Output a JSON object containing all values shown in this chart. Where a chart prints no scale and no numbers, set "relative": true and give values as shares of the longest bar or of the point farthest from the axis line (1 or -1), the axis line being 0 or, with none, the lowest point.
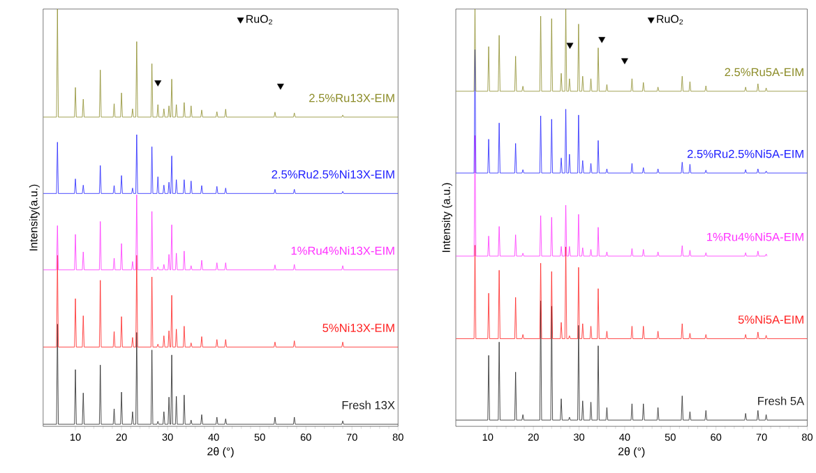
{
  "chart_data": [
    {
      "type": "line",
      "relative": true,
      "xlabel": "2θ (°)",
      "ylabel": "Intensity(a.u.)",
      "xlim": [
        3,
        80
      ],
      "xticks": [
        10,
        20,
        30,
        40,
        50,
        60,
        70,
        80
      ],
      "legend": "top",
      "x": [
        3.1,
        5.9,
        6.1,
        6.3,
        9.8,
        10,
        10.2,
        11.5,
        11.7,
        11.9,
        15.2,
        15.4,
        15.6,
        18.2,
        18.4,
        18.6,
        19.8,
        20,
        20.2,
        22.2,
        22.4,
        22.6,
        23.1,
        23.3,
        23.5,
        26.4,
        26.6,
        26.8,
        27.7,
        27.9,
        28.1,
        29,
        29.2,
        29.4,
        30.1,
        30.3,
        30.5,
        30.7,
        30.9,
        31.1,
        31.7,
        31.9,
        32.1,
        33.4,
        33.6,
        33.8,
        34.9,
        35.1,
        35.3,
        37.2,
        37.4,
        37.6,
        40.5,
        40.7,
        40.9,
        42.4,
        42.6,
        42.8,
        53.1,
        53.3,
        53.5,
        57.3,
        57.5,
        57.7,
        67.8,
        68,
        68.2,
        80
      ],
      "series": [
        {
          "name": "Fresh 13X",
          "color": "#222222",
          "values": [
            0.005,
            0.005,
            0.245,
            0.005,
            0.005,
            0.136,
            0.005,
            0.005,
            0.08,
            0.005,
            0.005,
            0.147,
            0.005,
            0.005,
            0.042,
            0.005,
            0.005,
            0.082,
            0.005,
            0.005,
            0.035,
            0.005,
            0.005,
            0.225,
            0.005,
            0.005,
            0.183,
            0.005,
            0.005,
            0.012,
            0.005,
            0.005,
            0.035,
            0.005,
            0.005,
            0.07,
            0.005,
            0.005,
            0.171,
            0.005,
            0.005,
            0.072,
            0.005,
            0.005,
            0.075,
            0.005,
            0.005,
            0.015,
            0.005,
            0.005,
            0.028,
            0.005,
            0.005,
            0.022,
            0.005,
            0.005,
            0.018,
            0.005,
            0.005,
            0.022,
            0.005,
            0.005,
            0.022,
            0.005,
            0.005,
            0.013,
            0.005,
            0.005
          ]
        },
        {
          "name": "5%Ni13X-EIM",
          "color": "#ff2020",
          "values": [
            0.19,
            0.19,
            0.41,
            0.19,
            0.19,
            0.306,
            0.19,
            0.19,
            0.265,
            0.19,
            0.19,
            0.35,
            0.19,
            0.19,
            0.227,
            0.19,
            0.19,
            0.263,
            0.19,
            0.19,
            0.213,
            0.19,
            0.19,
            0.41,
            0.19,
            0.19,
            0.358,
            0.19,
            0.19,
            0.197,
            0.19,
            0.19,
            0.217,
            0.19,
            0.19,
            0.229,
            0.19,
            0.19,
            0.314,
            0.19,
            0.19,
            0.233,
            0.19,
            0.19,
            0.24,
            0.19,
            0.19,
            0.2,
            0.19,
            0.19,
            0.215,
            0.19,
            0.19,
            0.208,
            0.19,
            0.19,
            0.208,
            0.19,
            0.19,
            0.202,
            0.19,
            0.19,
            0.205,
            0.19,
            0.19,
            0.202,
            0.19,
            0.19
          ]
        },
        {
          "name": "1%Ru4%Ni13X-EIM",
          "color": "#ff30ff",
          "values": [
            0.375,
            0.375,
            0.481,
            0.375,
            0.375,
            0.46,
            0.375,
            0.375,
            0.418,
            0.375,
            0.375,
            0.491,
            0.375,
            0.375,
            0.403,
            0.375,
            0.375,
            0.438,
            0.375,
            0.375,
            0.395,
            0.375,
            0.375,
            0.555,
            0.375,
            0.375,
            0.515,
            0.375,
            0.375,
            0.382,
            0.375,
            0.375,
            0.388,
            0.375,
            0.375,
            0.412,
            0.375,
            0.375,
            0.483,
            0.375,
            0.375,
            0.415,
            0.375,
            0.375,
            0.42,
            0.375,
            0.375,
            0.385,
            0.375,
            0.375,
            0.398,
            0.375,
            0.375,
            0.392,
            0.375,
            0.375,
            0.392,
            0.375,
            0.375,
            0.387,
            0.375,
            0.375,
            0.388,
            0.375,
            0.375,
            0.385,
            0.375,
            0.375
          ]
        },
        {
          "name": "2.5%Ru2.5%Ni13X-EIM",
          "color": "#2020ff",
          "values": [
            0.558,
            0.558,
            0.681,
            0.558,
            0.558,
            0.593,
            0.558,
            0.558,
            0.578,
            0.558,
            0.558,
            0.625,
            0.558,
            0.558,
            0.577,
            0.558,
            0.558,
            0.601,
            0.558,
            0.558,
            0.571,
            0.558,
            0.558,
            0.699,
            0.558,
            0.558,
            0.67,
            0.558,
            0.558,
            0.598,
            0.558,
            0.558,
            0.578,
            0.558,
            0.558,
            0.585,
            0.558,
            0.558,
            0.648,
            0.558,
            0.558,
            0.591,
            0.558,
            0.558,
            0.591,
            0.558,
            0.558,
            0.588,
            0.558,
            0.558,
            0.577,
            0.558,
            0.558,
            0.575,
            0.558,
            0.558,
            0.571,
            0.558,
            0.558,
            0.568,
            0.558,
            0.558,
            0.568,
            0.558,
            0.558,
            0.563,
            0.558,
            0.558
          ]
        },
        {
          "name": "2.5%Ru13X-EIM",
          "color": "#8c8c28",
          "values": [
            0.741,
            0.741,
            1.0,
            0.741,
            0.741,
            0.812,
            0.741,
            0.741,
            0.784,
            0.741,
            0.741,
            0.854,
            0.741,
            0.741,
            0.773,
            0.741,
            0.741,
            0.799,
            0.741,
            0.741,
            0.761,
            0.741,
            0.741,
            0.922,
            0.741,
            0.741,
            0.869,
            0.741,
            0.741,
            0.771,
            0.741,
            0.741,
            0.761,
            0.741,
            0.741,
            0.768,
            0.741,
            0.741,
            0.832,
            0.741,
            0.741,
            0.771,
            0.741,
            0.741,
            0.776,
            0.741,
            0.741,
            0.768,
            0.741,
            0.741,
            0.758,
            0.741,
            0.741,
            0.754,
            0.741,
            0.741,
            0.76,
            0.741,
            0.741,
            0.753,
            0.741,
            0.741,
            0.751,
            0.741,
            0.741,
            0.746,
            0.741,
            0.741
          ]
        },
        {
          "name": "RuO$_{2}$",
          "type": "scatter",
          "marker": "triangle",
          "color": "#000000",
          "x": [
            27.9,
            54.5
          ],
          "values": [
            0.824,
            0.816
          ]
        }
      ]
    },
    {
      "type": "line",
      "relative": true,
      "xlabel": "2θ (°)",
      "ylabel": "Intensity (a.u.)",
      "xlim": [
        3,
        80
      ],
      "xticks": [
        10,
        20,
        30,
        40,
        50,
        60,
        70,
        80
      ],
      "legend": "top",
      "x": [
        3.1,
        7.0,
        7.2,
        7.4,
        10.0,
        10.2,
        10.4,
        12.3,
        12.5,
        12.7,
        15.9,
        16.1,
        16.3,
        17.5,
        17.7,
        17.9,
        21.4,
        21.6,
        21.8,
        23.8,
        24.0,
        24.2,
        25.9,
        26.1,
        26.3,
        26.9,
        27.1,
        27.3,
        27.7,
        27.9,
        28.1,
        29.7,
        29.9,
        30.1,
        30.6,
        30.8,
        31.0,
        32.4,
        32.6,
        32.8,
        34.0,
        34.2,
        34.4,
        35.9,
        36.1,
        36.3,
        41.4,
        41.6,
        41.8,
        43.9,
        44.1,
        44.3,
        47.1,
        47.3,
        47.5,
        52.4,
        52.6,
        52.8,
        54.1,
        54.3,
        54.5,
        57.6,
        57.8,
        58.0,
        66.3,
        66.5,
        66.7,
        69.0,
        69.2,
        69.4,
        70.8,
        71.0,
        71.2,
        80
      ],
      "series": [
        {
          "name": "Fresh 5A",
          "color": "#222222",
          "values": [
            0.015,
            0.015,
            null,
            0.015,
            0.015,
            0.17,
            0.015,
            0.015,
            0.202,
            0.015,
            0.015,
            0.13,
            0.015,
            0.015,
            0.028,
            0.015,
            0.015,
            0.301,
            0.015,
            0.015,
            0.288,
            0.015,
            0.015,
            0.066,
            0.015,
            0.015,
            null,
            0.015,
            0.015,
            0.022,
            0.015,
            0.015,
            0.242,
            0.015,
            0.015,
            0.061,
            0.015,
            0.015,
            0.058,
            0.015,
            0.015,
            0.193,
            0.015,
            0.015,
            0.045,
            0.015,
            0.015,
            0.054,
            0.015,
            0.015,
            0.054,
            0.015,
            0.015,
            0.045,
            0.015,
            0.015,
            0.073,
            0.015,
            0.015,
            0.035,
            0.015,
            0.015,
            0.038,
            0.015,
            0.015,
            0.031,
            0.015,
            0.015,
            0.038,
            0.015,
            0.015,
            0.028,
            0.015,
            0.015
          ]
        },
        {
          "name": "5%Ni5A-EIM",
          "color": "#ff2020",
          "values": [
            0.21,
            0.21,
            0.434,
            0.21,
            0.21,
            0.319,
            0.21,
            0.21,
            0.374,
            0.21,
            0.21,
            0.309,
            0.21,
            0.21,
            0.22,
            0.21,
            0.21,
            0.391,
            0.21,
            0.21,
            0.371,
            0.21,
            0.21,
            0.249,
            0.21,
            0.21,
            0.43,
            0.21,
            0.21,
            0.217,
            0.21,
            0.21,
            0.381,
            0.21,
            0.21,
            0.246,
            0.21,
            0.21,
            0.24,
            0.21,
            0.21,
            0.33,
            0.21,
            0.21,
            0.228,
            0.21,
            0.21,
            0.24,
            0.21,
            0.21,
            0.24,
            0.21,
            0.21,
            0.228,
            0.21,
            0.21,
            0.246,
            0.21,
            0.21,
            0.223,
            0.21,
            0.21,
            0.22,
            0.21,
            0.21,
            0.22,
            0.21,
            0.21,
            0.226,
            0.21,
            0.21,
            0.218,
            0.21,
            0.21
          ]
        },
        {
          "name": "1%Ru4%Ni5A-EIM",
          "color": "#ff30ff",
          "values": [
            0.408,
            0.408,
            0.697,
            0.408,
            0.408,
            0.456,
            0.408,
            0.408,
            0.479,
            0.408,
            0.408,
            0.459,
            0.408,
            0.408,
            0.415,
            0.408,
            0.408,
            0.505,
            0.408,
            0.408,
            0.501,
            0.408,
            0.408,
            0.431,
            0.408,
            0.408,
            0.53,
            0.408,
            0.408,
            0.431,
            0.408,
            0.408,
            0.508,
            0.408,
            0.408,
            0.428,
            0.408,
            0.408,
            0.424,
            0.408,
            0.408,
            0.477,
            0.408,
            0.408,
            0.418,
            0.408,
            0.408,
            0.426,
            0.408,
            0.408,
            0.424,
            0.408,
            0.408,
            0.418,
            0.408,
            0.408,
            0.433,
            0.408,
            0.408,
            0.422,
            0.408,
            0.408,
            0.416,
            0.408,
            0.408,
            0.416,
            0.408,
            0.408,
            0.42,
            0.408,
            0.408,
            0.413,
            0.408,
            null
          ]
        },
        {
          "name": "2.5%Ru2.5%Ni5A-EIM",
          "color": "#2020ff",
          "values": [
            0.607,
            0.607,
            0.903,
            0.607,
            0.607,
            0.688,
            0.607,
            0.607,
            0.727,
            0.607,
            0.607,
            0.678,
            0.607,
            0.607,
            0.615,
            0.607,
            0.607,
            0.744,
            0.607,
            0.607,
            0.736,
            0.607,
            0.607,
            0.643,
            0.607,
            0.607,
            0.76,
            0.607,
            0.607,
            0.652,
            0.607,
            0.607,
            0.746,
            0.607,
            0.607,
            0.637,
            0.607,
            0.607,
            0.63,
            0.607,
            0.607,
            0.685,
            0.607,
            0.607,
            0.617,
            0.607,
            0.607,
            0.63,
            0.607,
            0.607,
            0.62,
            0.607,
            0.607,
            0.617,
            0.607,
            0.607,
            0.633,
            0.607,
            0.607,
            0.628,
            0.607,
            0.607,
            0.614,
            0.607,
            0.607,
            0.615,
            0.607,
            0.607,
            0.617,
            0.607,
            0.607,
            0.612,
            0.607,
            0.607
          ]
        },
        {
          "name": "2.5%Ru5A-EIM",
          "color": "#8c8c28",
          "values": [
            0.803,
            0.803,
            1.0,
            0.803,
            0.803,
            0.91,
            0.803,
            0.803,
            0.937,
            0.803,
            0.803,
            0.887,
            0.803,
            0.803,
            0.815,
            0.803,
            0.803,
            0.983,
            0.803,
            0.803,
            0.977,
            0.803,
            0.803,
            0.846,
            0.803,
            0.803,
            1.0,
            0.803,
            0.803,
            0.833,
            0.803,
            0.803,
            0.964,
            0.803,
            0.803,
            0.839,
            0.803,
            0.803,
            0.833,
            0.803,
            0.803,
            0.907,
            0.803,
            0.803,
            0.819,
            0.803,
            0.803,
            0.833,
            0.803,
            0.803,
            0.824,
            0.803,
            0.803,
            0.813,
            0.803,
            0.803,
            0.839,
            0.803,
            0.803,
            0.826,
            0.803,
            0.803,
            0.816,
            0.803,
            0.803,
            0.813,
            0.803,
            0.803,
            0.821,
            0.803,
            0.803,
            0.811,
            0.803,
            0.803
          ]
        },
        {
          "name": "RuO$_{2}$",
          "type": "scatter",
          "marker": "triangle",
          "color": "#000000",
          "x": [
            28.0,
            35.0,
            40.0
          ],
          "values": [
            0.914,
            0.928,
            0.877
          ]
        }
      ]
    }
  ]
}
